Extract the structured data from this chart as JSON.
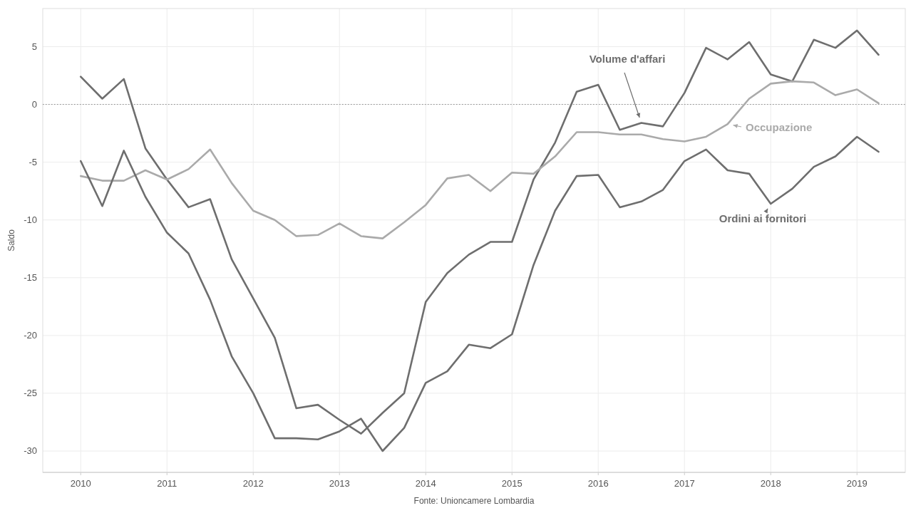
{
  "chart_data": {
    "type": "line",
    "ylabel": "Saldo",
    "x": [
      2010,
      2010.25,
      2010.5,
      2010.75,
      2011,
      2011.25,
      2011.5,
      2011.75,
      2012,
      2012.25,
      2012.5,
      2012.75,
      2013,
      2013.25,
      2013.5,
      2013.75,
      2014,
      2014.25,
      2014.5,
      2014.75,
      2015,
      2015.25,
      2015.5,
      2015.75,
      2016,
      2016.25,
      2016.5,
      2016.75,
      2017,
      2017.25,
      2017.5,
      2017.75,
      2018,
      2018.25,
      2018.5,
      2018.75,
      2019,
      2019.25
    ],
    "series": [
      {
        "name": "Volume d'affari",
        "color": "#6e6e6e",
        "values": [
          2.4,
          0.5,
          2.2,
          -3.8,
          -6.5,
          -8.9,
          -8.2,
          -13.4,
          -16.8,
          -20.2,
          -26.3,
          -26.0,
          -27.3,
          -28.5,
          -26.7,
          -25.0,
          -17.1,
          -14.6,
          -13.0,
          -11.9,
          -11.9,
          -6.5,
          -3.3,
          1.1,
          1.7,
          -2.2,
          -1.6,
          -1.9,
          1.0,
          4.9,
          3.9,
          5.4,
          2.6,
          2.0,
          5.6,
          4.9,
          6.4,
          4.3
        ]
      },
      {
        "name": "Occupazione",
        "color": "#aaaaaa",
        "values": [
          -6.2,
          -6.6,
          -6.6,
          -5.7,
          -6.5,
          -5.6,
          -3.9,
          -6.8,
          -9.2,
          -10.0,
          -11.4,
          -11.3,
          -10.3,
          -11.4,
          -11.6,
          -10.2,
          -8.7,
          -6.4,
          -6.1,
          -7.5,
          -5.9,
          -6.0,
          -4.5,
          -2.4,
          -2.4,
          -2.6,
          -2.6,
          -3.0,
          -3.2,
          -2.8,
          -1.7,
          0.5,
          1.8,
          2.0,
          1.9,
          0.8,
          1.3,
          0.1
        ]
      },
      {
        "name": "Ordini ai fornitori",
        "color": "#6e6e6e",
        "values": [
          -4.9,
          -8.8,
          -4.0,
          -8.0,
          -11.1,
          -12.9,
          -16.9,
          -21.8,
          -25.0,
          -28.9,
          -28.9,
          -29.0,
          -28.3,
          -27.2,
          -30.0,
          -28.0,
          -24.1,
          -23.1,
          -20.8,
          -21.1,
          -19.9,
          -13.9,
          -9.2,
          -6.2,
          -6.1,
          -8.9,
          -8.4,
          -7.4,
          -4.9,
          -3.9,
          -5.7,
          -6.0,
          -8.6,
          -7.3,
          -5.4,
          -4.5,
          -2.8,
          -4.1
        ]
      }
    ],
    "xlim": [
      2009.56,
      2019.56
    ],
    "xticks": [
      2010,
      2011,
      2012,
      2013,
      2014,
      2015,
      2016,
      2017,
      2018,
      2019
    ],
    "ylim": [
      -31.85,
      8.3
    ],
    "yticks": [
      -30,
      -25,
      -20,
      -15,
      -10,
      -5,
      0,
      5
    ],
    "grid": true,
    "ref_lines": [
      {
        "axis": "y",
        "value": 0,
        "line_style": "dotted",
        "color": "#888888"
      }
    ],
    "annotations": [
      "Fonte: Unioncamere Lombardia"
    ]
  }
}
